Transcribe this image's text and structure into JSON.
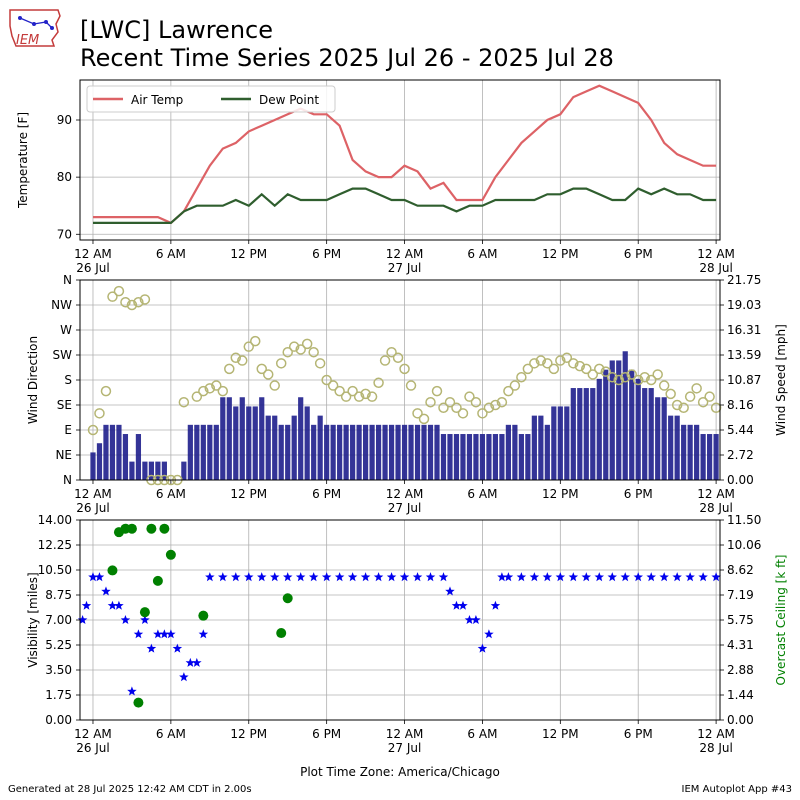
{
  "header": {
    "title_line1": "[LWC] Lawrence",
    "title_line2": "Recent Time Series 2025 Jul 26 - 2025 Jul 28",
    "logo_text": "IEM"
  },
  "footer": {
    "generated": "Generated at 28 Jul 2025 12:42 AM CDT in 2.00s",
    "app": "IEM Autoplot App #43"
  },
  "colors": {
    "air_temp": "#dd6266",
    "dew_point": "#2f5e2e",
    "wind_speed": "#1e1e8c",
    "wind_dir_marker": "#b5b574",
    "visibility": "#0000ee",
    "ceiling": "#008000",
    "grid": "#b0b0b0"
  },
  "chart_data": [
    {
      "type": "line",
      "ylabel": "Temperature [F]",
      "ylim": [
        69,
        97
      ],
      "yticks": [
        70,
        80,
        90
      ],
      "xlim_hours": [
        -1,
        48.3
      ],
      "x_ticks": [
        {
          "h": 0,
          "label": "12 AM",
          "sub": "26 Jul"
        },
        {
          "h": 6,
          "label": "6 AM",
          "sub": ""
        },
        {
          "h": 12,
          "label": "12 PM",
          "sub": ""
        },
        {
          "h": 18,
          "label": "6 PM",
          "sub": ""
        },
        {
          "h": 24,
          "label": "12 AM",
          "sub": "27 Jul"
        },
        {
          "h": 30,
          "label": "6 AM",
          "sub": ""
        },
        {
          "h": 36,
          "label": "12 PM",
          "sub": ""
        },
        {
          "h": 42,
          "label": "6 PM",
          "sub": ""
        },
        {
          "h": 48,
          "label": "12 AM",
          "sub": "28 Jul"
        }
      ],
      "legend": "top-left",
      "grid": true,
      "series": [
        {
          "name": "Air Temp",
          "x": [
            0,
            1,
            2,
            3,
            4,
            5,
            6,
            7,
            8,
            9,
            10,
            11,
            12,
            13,
            14,
            15,
            16,
            17,
            18,
            19,
            20,
            21,
            22,
            23,
            24,
            25,
            26,
            27,
            28,
            29,
            30,
            31,
            32,
            33,
            34,
            35,
            36,
            37,
            38,
            39,
            40,
            41,
            42,
            43,
            44,
            45,
            46,
            47,
            48
          ],
          "y": [
            73,
            73,
            73,
            73,
            73,
            73,
            72,
            74,
            78,
            82,
            85,
            86,
            88,
            89,
            90,
            91,
            92,
            91,
            91,
            89,
            83,
            81,
            80,
            80,
            82,
            81,
            78,
            79,
            76,
            76,
            76,
            80,
            83,
            86,
            88,
            90,
            91,
            94,
            95,
            96,
            95,
            94,
            93,
            90,
            86,
            84,
            83,
            82,
            82
          ]
        },
        {
          "name": "Dew Point",
          "x": [
            0,
            1,
            2,
            3,
            4,
            5,
            6,
            7,
            8,
            9,
            10,
            11,
            12,
            13,
            14,
            15,
            16,
            17,
            18,
            19,
            20,
            21,
            22,
            23,
            24,
            25,
            26,
            27,
            28,
            29,
            30,
            31,
            32,
            33,
            34,
            35,
            36,
            37,
            38,
            39,
            40,
            41,
            42,
            43,
            44,
            45,
            46,
            47,
            48
          ],
          "y": [
            72,
            72,
            72,
            72,
            72,
            72,
            72,
            74,
            75,
            75,
            75,
            76,
            75,
            77,
            75,
            77,
            76,
            76,
            76,
            77,
            78,
            78,
            77,
            76,
            76,
            75,
            75,
            75,
            74,
            75,
            75,
            76,
            76,
            76,
            76,
            77,
            77,
            78,
            78,
            77,
            76,
            76,
            78,
            77,
            78,
            77,
            77,
            76,
            76
          ]
        }
      ]
    },
    {
      "type": "scatter",
      "ylabel": "Wind Direction",
      "y2label": "Wind Speed [mph]",
      "ylim": [
        0,
        360
      ],
      "yticks": [
        "N",
        "NE",
        "E",
        "SE",
        "S",
        "SW",
        "W",
        "NW",
        "N"
      ],
      "y2lim": [
        0,
        21.75
      ],
      "y2ticks": [
        "0.00",
        "2.72",
        "5.44",
        "8.16",
        "10.87",
        "13.59",
        "16.31",
        "19.03",
        "21.75"
      ],
      "series": [
        {
          "name": "Wind Direction",
          "kind": "markers",
          "x": [
            0,
            0.5,
            1,
            1.5,
            2,
            2.5,
            3,
            3.5,
            4,
            4.5,
            5,
            5.5,
            6,
            6.5,
            7,
            8,
            8.5,
            9,
            9.5,
            10,
            10.5,
            11,
            11.5,
            12,
            12.5,
            13,
            13.5,
            14,
            14.5,
            15,
            15.5,
            16,
            16.5,
            17,
            17.5,
            18,
            18.5,
            19,
            19.5,
            20,
            20.5,
            21,
            21.5,
            22,
            22.5,
            23,
            23.5,
            24,
            24.5,
            25,
            25.5,
            26,
            26.5,
            27,
            27.5,
            28,
            28.5,
            29,
            29.5,
            30,
            30.5,
            31,
            31.5,
            32,
            32.5,
            33,
            33.5,
            34,
            34.5,
            35,
            35.5,
            36,
            36.5,
            37,
            37.5,
            38,
            38.5,
            39,
            39.5,
            40,
            40.5,
            41,
            41.5,
            42,
            42.5,
            43,
            43.5,
            44,
            44.5,
            45,
            45.5,
            46,
            46.5,
            47,
            47.5,
            48
          ],
          "y": [
            90,
            120,
            160,
            330,
            340,
            320,
            315,
            320,
            325,
            0,
            0,
            0,
            0,
            0,
            140,
            150,
            160,
            165,
            170,
            160,
            200,
            220,
            215,
            240,
            250,
            200,
            190,
            170,
            210,
            230,
            240,
            235,
            245,
            230,
            210,
            180,
            170,
            160,
            150,
            160,
            150,
            155,
            150,
            175,
            215,
            230,
            220,
            200,
            170,
            120,
            110,
            140,
            160,
            130,
            140,
            130,
            120,
            150,
            140,
            120,
            130,
            135,
            140,
            160,
            170,
            185,
            200,
            210,
            215,
            210,
            200,
            215,
            220,
            210,
            205,
            200,
            190,
            200,
            195,
            185,
            180,
            185,
            190,
            180,
            185,
            180,
            190,
            170,
            155,
            135,
            130,
            150,
            165,
            140,
            150,
            130
          ]
        },
        {
          "name": "Wind Speed",
          "kind": "bars",
          "x": [
            0,
            0.5,
            1,
            1.5,
            2,
            2.5,
            3,
            3.5,
            4,
            4.5,
            5,
            5.5,
            6,
            6.5,
            7,
            7.5,
            8,
            8.5,
            9,
            9.5,
            10,
            10.5,
            11,
            11.5,
            12,
            12.5,
            13,
            13.5,
            14,
            14.5,
            15,
            15.5,
            16,
            16.5,
            17,
            17.5,
            18,
            18.5,
            19,
            19.5,
            20,
            20.5,
            21,
            21.5,
            22,
            22.5,
            23,
            23.5,
            24,
            24.5,
            25,
            25.5,
            26,
            26.5,
            27,
            27.5,
            28,
            28.5,
            29,
            29.5,
            30,
            30.5,
            31,
            31.5,
            32,
            32.5,
            33,
            33.5,
            34,
            34.5,
            35,
            35.5,
            36,
            36.5,
            37,
            37.5,
            38,
            38.5,
            39,
            39.5,
            40,
            40.5,
            41,
            41.5,
            42,
            42.5,
            43,
            43.5,
            44,
            44.5,
            45,
            45.5,
            46,
            46.5,
            47,
            47.5,
            48
          ],
          "y": [
            3,
            4,
            6,
            6,
            6,
            5,
            2,
            5,
            2,
            2,
            2,
            2,
            0,
            0,
            2,
            6,
            6,
            6,
            6,
            6,
            9,
            9,
            8,
            9,
            8,
            8,
            9,
            7,
            7,
            6,
            6,
            7,
            9,
            8,
            6,
            7,
            6,
            6,
            6,
            6,
            6,
            6,
            6,
            6,
            6,
            6,
            6,
            6,
            6,
            6,
            6,
            6,
            6,
            6,
            5,
            5,
            5,
            5,
            5,
            5,
            5,
            5,
            5,
            5,
            6,
            6,
            5,
            5,
            7,
            7,
            6,
            8,
            8,
            8,
            10,
            10,
            10,
            10,
            11,
            12,
            13,
            13,
            14,
            12,
            11,
            10,
            10,
            9,
            9,
            7,
            7,
            6,
            6,
            6,
            5,
            5,
            5
          ]
        }
      ]
    },
    {
      "type": "scatter",
      "ylabel": "Visibility [miles]",
      "y2label": "Overcast Ceiling [k ft]",
      "xlabel": "Plot Time Zone: America/Chicago",
      "ylim": [
        0,
        14
      ],
      "yticks": [
        "0.00",
        "1.75",
        "3.50",
        "5.25",
        "7.00",
        "8.75",
        "10.50",
        "12.25",
        "14.00"
      ],
      "y2lim": [
        0,
        11.5
      ],
      "y2ticks": [
        "0.00",
        "1.44",
        "2.88",
        "4.31",
        "5.75",
        "7.19",
        "8.62",
        "10.06",
        "11.50"
      ],
      "series": [
        {
          "name": "Visibility",
          "kind": "stars",
          "x": [
            -0.8,
            -0.5,
            0,
            0.5,
            1,
            1.5,
            2,
            2.5,
            3,
            3.5,
            4,
            4.5,
            5,
            5.5,
            6,
            6.5,
            7,
            7.5,
            8,
            8.5,
            9,
            10,
            11,
            12,
            13,
            14,
            15,
            16,
            17,
            18,
            19,
            20,
            21,
            22,
            23,
            24,
            25,
            26,
            27,
            27.5,
            28,
            28.5,
            29,
            29.5,
            30,
            30.5,
            31,
            31.5,
            32,
            33,
            34,
            35,
            36,
            37,
            38,
            39,
            40,
            41,
            42,
            43,
            44,
            45,
            46,
            47,
            48
          ],
          "y": [
            7,
            8,
            10,
            10,
            9,
            8,
            8,
            7,
            2,
            6,
            7,
            5,
            6,
            6,
            6,
            5,
            3,
            4,
            4,
            6,
            10,
            10,
            10,
            10,
            10,
            10,
            10,
            10,
            10,
            10,
            10,
            10,
            10,
            10,
            10,
            10,
            10,
            10,
            10,
            9,
            8,
            8,
            7,
            7,
            5,
            6,
            8,
            10,
            10,
            10,
            10,
            10,
            10,
            10,
            10,
            10,
            10,
            10,
            10,
            10,
            10,
            10,
            10,
            10,
            10
          ]
        },
        {
          "name": "Overcast Ceiling",
          "kind": "dots",
          "x": [
            1.5,
            2,
            2.5,
            3,
            3.5,
            4,
            4.5,
            5,
            5.5,
            6,
            8.5,
            14.5,
            15
          ],
          "y": [
            8.6,
            10.8,
            11,
            11,
            1,
            6.2,
            11,
            8,
            11,
            9.5,
            6,
            5,
            7
          ]
        }
      ]
    }
  ]
}
